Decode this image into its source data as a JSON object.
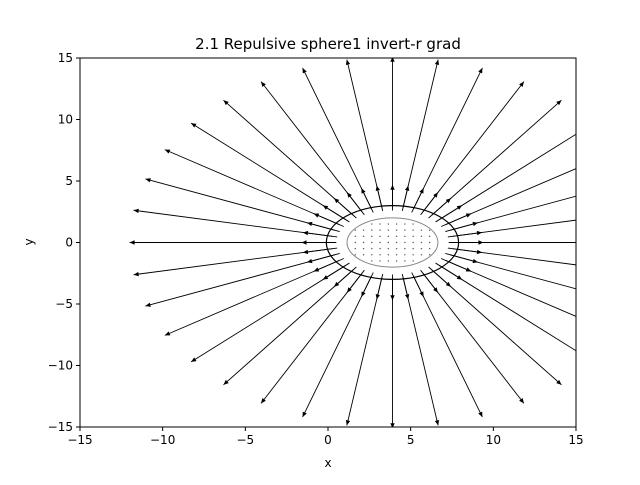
{
  "chart_data": {
    "type": "quiver",
    "title": "2.1 Repulsive sphere1 invert-r  grad",
    "xlabel": "x",
    "ylabel": "y",
    "xlim": [
      -15,
      15
    ],
    "ylim": [
      -15,
      15
    ],
    "xticks": [
      -15,
      -10,
      -5,
      0,
      5,
      10,
      15
    ],
    "yticks": [
      -15,
      -10,
      -5,
      0,
      5,
      10,
      15
    ],
    "xtick_labels": [
      "−15",
      "−10",
      "−5",
      "0",
      "5",
      "10",
      "15"
    ],
    "ytick_labels": [
      "−15",
      "−10",
      "−5",
      "0",
      "5",
      "10",
      "15"
    ],
    "grid": false,
    "sphere": {
      "center": [
        3.9,
        0.0
      ],
      "rx": 2.75,
      "ry": 2.0
    },
    "boundary_ellipse": {
      "center": [
        3.9,
        0.0
      ],
      "rx": 4.0,
      "ry": 3.0
    },
    "vector_field": {
      "description_of_rays": "radial arrows pointing outward from the sphere center",
      "ray_count": 36,
      "start_radius_x": 3.4,
      "start_radius_y": 2.6,
      "long_arrow_length": 12.5,
      "short_arrow_length": 1.8
    },
    "colors": {
      "arrow": "#000000",
      "sphere_outline": "#888888",
      "sphere_dots": "#555555",
      "axes": "#000000",
      "background": "#ffffff"
    }
  }
}
